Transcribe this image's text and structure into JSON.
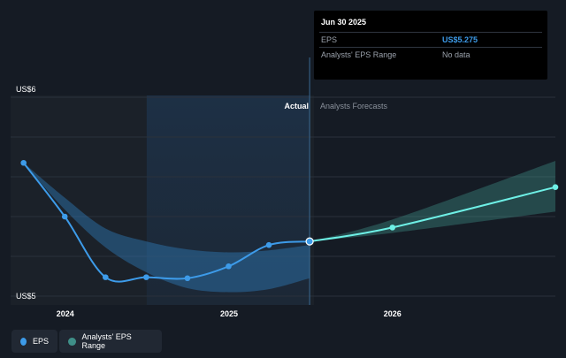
{
  "chart_data": {
    "type": "line",
    "y_axis_labels": {
      "top": "US$6",
      "bottom": "US$5"
    },
    "ylim": [
      5,
      6
    ],
    "xlim": [
      "2023-09-01",
      "2026-12-31"
    ],
    "x_ticks": [
      {
        "date": "2024-01-01",
        "label": "2024"
      },
      {
        "date": "2025-01-01",
        "label": "2025"
      },
      {
        "date": "2026-01-01",
        "label": "2026"
      }
    ],
    "sections": {
      "actual": "Actual",
      "forecast": "Analysts Forecasts"
    },
    "actual_end_date": "2025-06-30",
    "highlight_range": [
      "2024-07-01",
      "2025-06-30"
    ],
    "grid": true,
    "series": [
      {
        "name": "EPS",
        "color": "#3d9be9",
        "points": [
          {
            "x": "2023-09-30",
            "y": 5.67
          },
          {
            "x": "2023-12-31",
            "y": 5.4
          },
          {
            "x": "2024-03-31",
            "y": 5.095
          },
          {
            "x": "2024-06-30",
            "y": 5.095
          },
          {
            "x": "2024-09-30",
            "y": 5.09
          },
          {
            "x": "2024-12-31",
            "y": 5.15
          },
          {
            "x": "2025-03-31",
            "y": 5.257
          },
          {
            "x": "2025-06-30",
            "y": 5.275
          }
        ]
      },
      {
        "name": "EPS forecast",
        "color": "#6ef0e6",
        "points": [
          {
            "x": "2025-06-30",
            "y": 5.275
          },
          {
            "x": "2026-01-01",
            "y": 5.345
          },
          {
            "x": "2026-12-31",
            "y": 5.548
          }
        ]
      }
    ],
    "ranges": [
      {
        "name": "Analysts' EPS Range (historical)",
        "color": "#2e7ab8",
        "upper": [
          {
            "x": "2023-09-30",
            "y": 5.67
          },
          {
            "x": "2023-12-31",
            "y": 5.495
          },
          {
            "x": "2024-03-31",
            "y": 5.34
          },
          {
            "x": "2024-06-30",
            "y": 5.275
          },
          {
            "x": "2024-09-30",
            "y": 5.235
          },
          {
            "x": "2024-12-31",
            "y": 5.22
          },
          {
            "x": "2025-03-31",
            "y": 5.23
          },
          {
            "x": "2025-06-30",
            "y": 5.257
          }
        ],
        "lower": [
          {
            "x": "2023-09-30",
            "y": 5.67
          },
          {
            "x": "2023-12-31",
            "y": 5.435
          },
          {
            "x": "2024-03-31",
            "y": 5.245
          },
          {
            "x": "2024-06-30",
            "y": 5.12
          },
          {
            "x": "2024-09-30",
            "y": 5.04
          },
          {
            "x": "2024-12-31",
            "y": 5.02
          },
          {
            "x": "2025-03-31",
            "y": 5.035
          },
          {
            "x": "2025-06-30",
            "y": 5.09
          }
        ]
      },
      {
        "name": "Analysts' EPS Range (forecast)",
        "color": "#3f8f88",
        "upper": [
          {
            "x": "2025-06-30",
            "y": 5.275
          },
          {
            "x": "2026-01-01",
            "y": 5.385
          },
          {
            "x": "2026-12-31",
            "y": 5.68
          }
        ],
        "lower": [
          {
            "x": "2025-06-30",
            "y": 5.275
          },
          {
            "x": "2026-01-01",
            "y": 5.318
          },
          {
            "x": "2026-12-31",
            "y": 5.425
          }
        ]
      }
    ]
  },
  "tooltip": {
    "date": "Jun 30 2025",
    "rows": [
      {
        "label": "EPS",
        "value": "US$5.275"
      },
      {
        "label": "Analysts' EPS Range",
        "value": "No data"
      }
    ]
  },
  "legend": {
    "eps": {
      "label": "EPS",
      "color": "#3d9be9"
    },
    "range": {
      "label": "Analysts' EPS Range",
      "color": "#3f8f88"
    }
  }
}
